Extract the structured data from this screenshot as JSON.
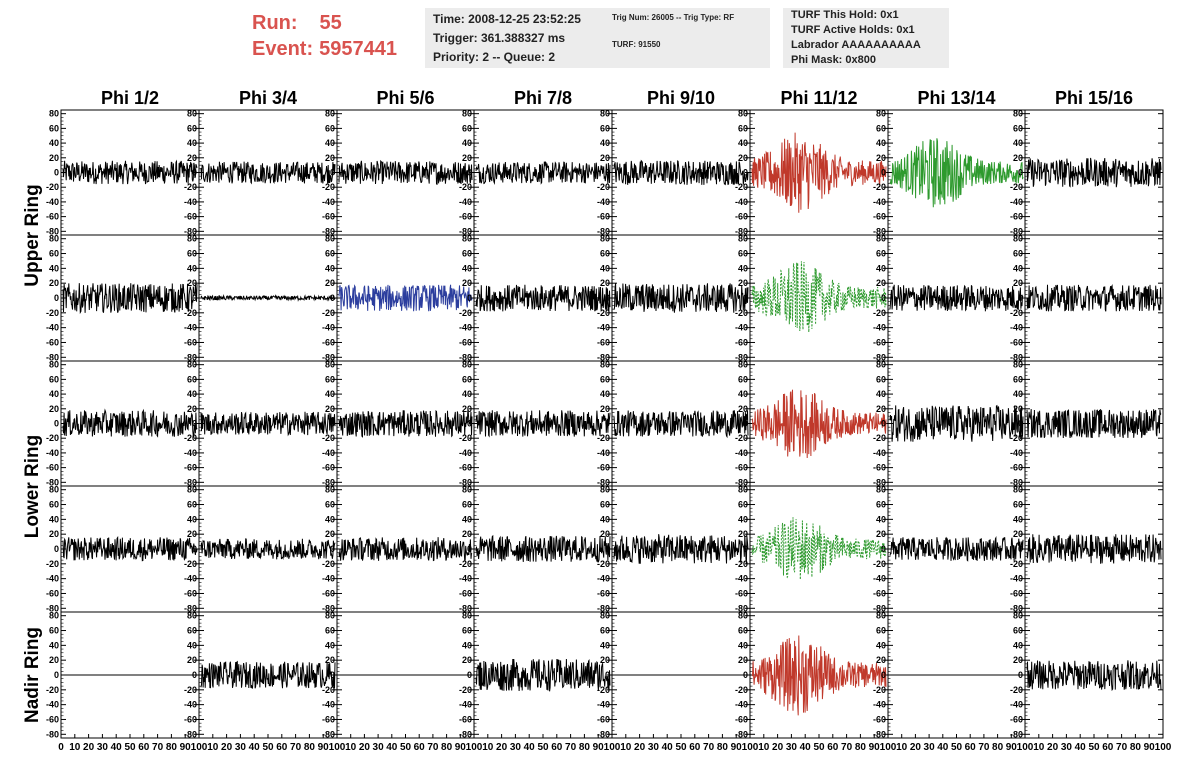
{
  "header": {
    "run_label": "Run:",
    "run_value": "55",
    "event_label": "Event:",
    "event_value": "5957441"
  },
  "info_time": {
    "time": "Time: 2008-12-25 23:52:25",
    "trigger": "Trigger: 361.388327 ms",
    "priority_queue": "Priority: 2 -- Queue: 2"
  },
  "info_trig": {
    "trig": "Trig Num: 26005 -- Trig Type: RF",
    "turf": "TURF: 91550"
  },
  "info_turf": {
    "this_hold": "TURF This Hold: 0x1",
    "active_holds": "TURF Active Holds: 0x1",
    "labrador": "Labrador AAAAAAAAAA",
    "phi_mask": "Phi Mask: 0x800"
  },
  "colors": {
    "red": "#c0392b",
    "green": "#2e9a2e",
    "blue": "#2c3e9e",
    "black": "#000000",
    "title_red": "#d9534f"
  },
  "chart_data": {
    "type": "line",
    "columns": [
      "Phi 1/2",
      "Phi 3/4",
      "Phi 5/6",
      "Phi 7/8",
      "Phi 9/10",
      "Phi 11/12",
      "Phi 13/14",
      "Phi 15/16"
    ],
    "ring_labels": [
      "Upper Ring",
      "Lower Ring",
      "Nadir Ring"
    ],
    "y_ticks": [
      80,
      60,
      40,
      20,
      0,
      -20,
      -40,
      -60,
      -80
    ],
    "x_ticks": [
      0,
      10,
      20,
      30,
      40,
      50,
      60,
      70,
      80,
      90,
      100
    ],
    "ylim": [
      -85,
      85
    ],
    "xlim": [
      0,
      100
    ],
    "rows": [
      {
        "ring": "Upper",
        "panels": [
          {
            "color": "black",
            "amp": 16,
            "style": "solid"
          },
          {
            "color": "black",
            "amp": 15,
            "style": "solid"
          },
          {
            "color": "black",
            "amp": 16,
            "style": "solid"
          },
          {
            "color": "black",
            "amp": 15,
            "style": "solid"
          },
          {
            "color": "black",
            "amp": 17,
            "style": "solid"
          },
          {
            "color": "red",
            "amp": 55,
            "style": "solid",
            "burst": true
          },
          {
            "color": "green",
            "amp": 50,
            "style": "solid",
            "burst": true
          },
          {
            "color": "black",
            "amp": 20,
            "style": "solid"
          }
        ]
      },
      {
        "ring": "Upper",
        "panels": [
          {
            "color": "black",
            "amp": 20,
            "style": "solid"
          },
          {
            "color": "black",
            "amp": 3,
            "style": "solid"
          },
          {
            "color": "blue",
            "amp": 18,
            "style": "solid"
          },
          {
            "color": "black",
            "amp": 18,
            "style": "solid"
          },
          {
            "color": "black",
            "amp": 20,
            "style": "solid"
          },
          {
            "color": "green",
            "amp": 50,
            "style": "dashed",
            "burst": true
          },
          {
            "color": "black",
            "amp": 18,
            "style": "solid"
          },
          {
            "color": "black",
            "amp": 18,
            "style": "solid"
          }
        ]
      },
      {
        "ring": "Lower",
        "panels": [
          {
            "color": "black",
            "amp": 18,
            "style": "solid"
          },
          {
            "color": "black",
            "amp": 16,
            "style": "solid"
          },
          {
            "color": "black",
            "amp": 18,
            "style": "solid"
          },
          {
            "color": "black",
            "amp": 18,
            "style": "solid"
          },
          {
            "color": "black",
            "amp": 18,
            "style": "solid"
          },
          {
            "color": "red",
            "amp": 50,
            "style": "solid",
            "burst": true
          },
          {
            "color": "black",
            "amp": 25,
            "style": "solid"
          },
          {
            "color": "black",
            "amp": 20,
            "style": "solid"
          }
        ]
      },
      {
        "ring": "Lower",
        "panels": [
          {
            "color": "black",
            "amp": 16,
            "style": "solid"
          },
          {
            "color": "black",
            "amp": 14,
            "style": "solid"
          },
          {
            "color": "black",
            "amp": 16,
            "style": "solid"
          },
          {
            "color": "black",
            "amp": 18,
            "style": "solid"
          },
          {
            "color": "black",
            "amp": 20,
            "style": "solid"
          },
          {
            "color": "green",
            "amp": 45,
            "style": "dashed",
            "burst": true
          },
          {
            "color": "black",
            "amp": 16,
            "style": "solid"
          },
          {
            "color": "black",
            "amp": 20,
            "style": "solid"
          }
        ]
      },
      {
        "ring": "Nadir",
        "panels": [
          {
            "color": "black",
            "amp": 0,
            "style": "solid"
          },
          {
            "color": "black",
            "amp": 18,
            "style": "solid",
            "start": 0.0
          },
          {
            "color": "black",
            "amp": 0,
            "style": "solid"
          },
          {
            "color": "black",
            "amp": 22,
            "style": "solid"
          },
          {
            "color": "black",
            "amp": 0,
            "style": "solid"
          },
          {
            "color": "red",
            "amp": 55,
            "style": "solid",
            "burst": true
          },
          {
            "color": "black",
            "amp": 0,
            "style": "solid"
          },
          {
            "color": "black",
            "amp": 20,
            "style": "solid"
          }
        ]
      }
    ]
  }
}
